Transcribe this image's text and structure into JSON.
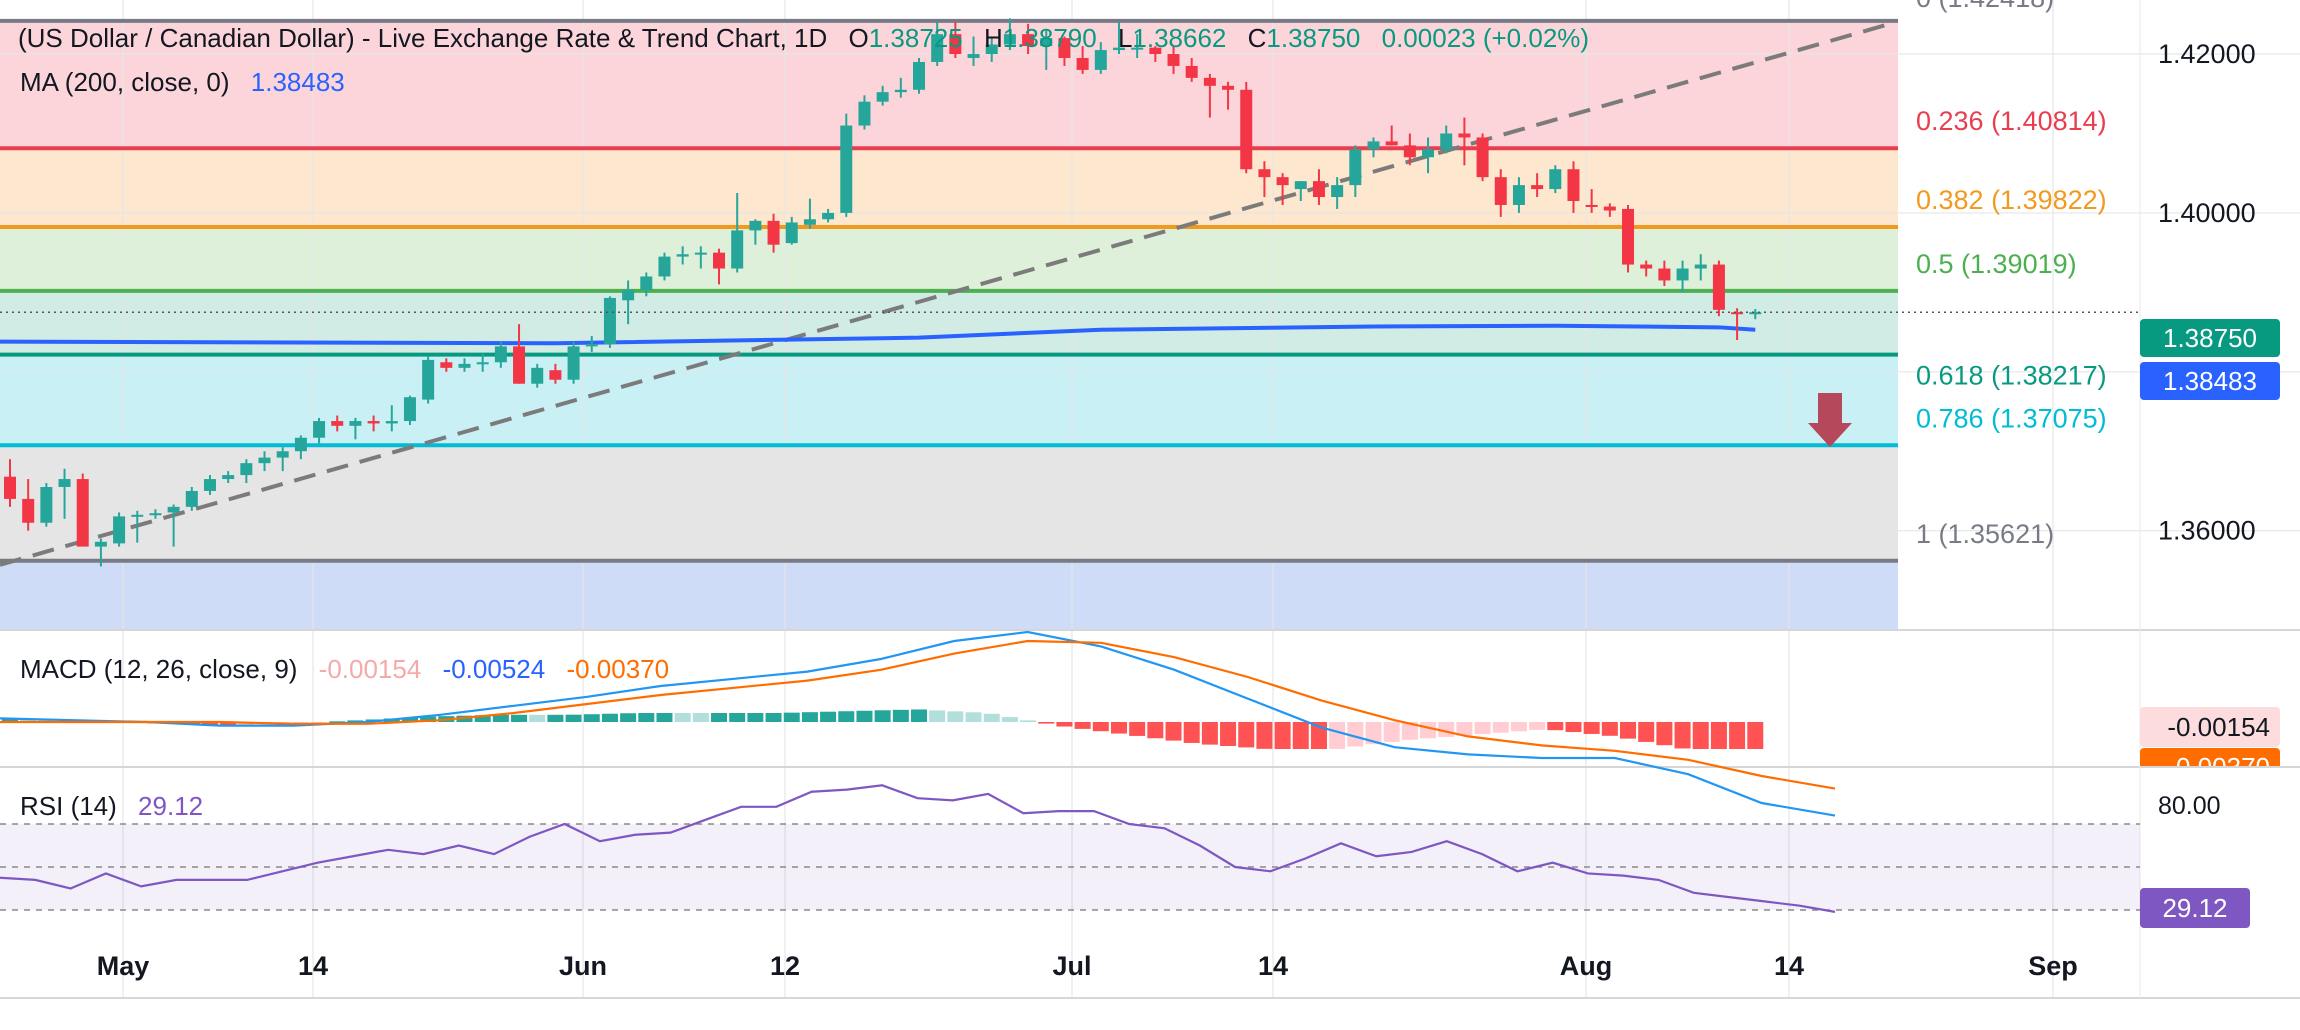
{
  "header": {
    "symbol": "(US Dollar / Canadian Dollar) - Live Exchange Rate & Trend Chart, 1D",
    "o_label": "O",
    "o_value": "1.38725",
    "h_label": "H",
    "h_value": "1.38790",
    "l_label": "L",
    "l_value": "1.38662",
    "c_label": "C",
    "c_value": "1.38750",
    "change": "0.00023 (+0.02%)"
  },
  "ma_legend": {
    "label": "MA (200, close, 0)",
    "value": "1.38483"
  },
  "macd_legend": {
    "label": "MACD (12, 26, close, 9)",
    "hist": "-0.00154",
    "macd": "-0.00524",
    "signal": "-0.00370"
  },
  "rsi_legend": {
    "label": "RSI (14)",
    "value": "29.12"
  },
  "badges": {
    "last_price": "1.38750",
    "ma_price": "1.38483",
    "macd_hist": "-0.00154",
    "macd_signal_partial": "-0.00370",
    "rsi": "29.12"
  },
  "colors": {
    "up": "#26a69a",
    "down": "#f23645",
    "ma": "#2962ff",
    "macd": "#2196f3",
    "signal": "#ff6d00",
    "rsi": "#7e57c2"
  },
  "chart_data": [
    {
      "type": "candlestick",
      "title": "(US Dollar / Canadian Dollar) - Live Exchange Rate & Trend Chart, 1D",
      "y_ticks": [
        "1.42000",
        "1.40000",
        "1.36000"
      ],
      "x_ticks": [
        "May",
        "14",
        "Jun",
        "12",
        "Jul",
        "14",
        "Aug",
        "14",
        "Sep"
      ],
      "ylim": [
        1.3475,
        1.4268
      ],
      "fib_levels": [
        {
          "ratio": "0",
          "price": 1.42418,
          "label": "0 (1.42418)"
        },
        {
          "ratio": "0.236",
          "price": 1.40814,
          "label": "0.236 (1.40814)"
        },
        {
          "ratio": "0.382",
          "price": 1.39822,
          "label": "0.382 (1.39822)"
        },
        {
          "ratio": "0.5",
          "price": 1.39019,
          "label": "0.5 (1.39019)"
        },
        {
          "ratio": "0.618",
          "price": 1.38217,
          "label": "0.618 (1.38217)"
        },
        {
          "ratio": "0.786",
          "price": 1.37075,
          "label": "0.786 (1.37075)"
        },
        {
          "ratio": "1",
          "price": 1.35621,
          "label": "1 (1.35621)"
        }
      ],
      "ohlc": [
        [
          "Apr 29",
          1.3668,
          1.369,
          1.363,
          1.364
        ],
        [
          "Apr 30",
          1.364,
          1.3665,
          1.36,
          1.361
        ],
        [
          "May 1",
          1.361,
          1.366,
          1.3605,
          1.3655
        ],
        [
          "May 2",
          1.3655,
          1.3678,
          1.3615,
          1.3665
        ],
        [
          "May 3",
          1.3665,
          1.3672,
          1.3585,
          1.358
        ],
        [
          "May 6",
          1.358,
          1.359,
          1.3555,
          1.3586
        ],
        [
          "May 7",
          1.3584,
          1.3623,
          1.358,
          1.3618
        ],
        [
          "May 8",
          1.3618,
          1.3625,
          1.3585,
          1.362
        ],
        [
          "May 9",
          1.3622,
          1.3627,
          1.3615,
          1.3622
        ],
        [
          "May 10",
          1.3623,
          1.3633,
          1.358,
          1.363
        ],
        [
          "May 13",
          1.363,
          1.3655,
          1.3625,
          1.365
        ],
        [
          "May 14",
          1.365,
          1.367,
          1.3645,
          1.3665
        ],
        [
          "May 15",
          1.3665,
          1.3675,
          1.366,
          1.367
        ],
        [
          "May 16",
          1.367,
          1.369,
          1.366,
          1.3685
        ],
        [
          "May 17",
          1.3685,
          1.37,
          1.3675,
          1.3692
        ],
        [
          "May 20",
          1.3692,
          1.3705,
          1.3675,
          1.37
        ],
        [
          "May 21",
          1.37,
          1.372,
          1.369,
          1.3717
        ],
        [
          "May 22",
          1.3717,
          1.3742,
          1.371,
          1.3738
        ],
        [
          "May 23",
          1.3738,
          1.3745,
          1.3725,
          1.3732
        ],
        [
          "May 24",
          1.3732,
          1.3742,
          1.3715,
          1.3738
        ],
        [
          "May 27",
          1.3738,
          1.3745,
          1.3725,
          1.3735
        ],
        [
          "May 28",
          1.3735,
          1.3758,
          1.3725,
          1.3738
        ],
        [
          "May 29",
          1.3738,
          1.377,
          1.3733,
          1.3768
        ],
        [
          "May 30",
          1.3765,
          1.382,
          1.376,
          1.3815
        ],
        [
          "May 31",
          1.3812,
          1.3817,
          1.38,
          1.3805
        ],
        [
          "Jun 3",
          1.3805,
          1.3817,
          1.38,
          1.381
        ],
        [
          "Jun 4",
          1.381,
          1.3823,
          1.38,
          1.3812
        ],
        [
          "Jun 5",
          1.3812,
          1.3838,
          1.3805,
          1.3832
        ],
        [
          "Jun 6",
          1.3832,
          1.386,
          1.3785,
          1.3785
        ],
        [
          "Jun 7",
          1.3785,
          1.381,
          1.378,
          1.3805
        ],
        [
          "Jun 10",
          1.3802,
          1.381,
          1.3785,
          1.379
        ],
        [
          "Jun 11",
          1.379,
          1.3838,
          1.3785,
          1.3832
        ],
        [
          "Jun 12",
          1.3832,
          1.3845,
          1.3825,
          1.3835
        ],
        [
          "Jun 13",
          1.3835,
          1.3895,
          1.383,
          1.3893
        ],
        [
          "Jun 14",
          1.389,
          1.3915,
          1.386,
          1.3903
        ],
        [
          "Jun 17",
          1.3903,
          1.3925,
          1.3895,
          1.392
        ],
        [
          "Jun 18",
          1.392,
          1.395,
          1.3915,
          1.3945
        ],
        [
          "Jun 19",
          1.3945,
          1.3958,
          1.3935,
          1.3948
        ],
        [
          "Jun 20",
          1.3948,
          1.3958,
          1.393,
          1.395
        ],
        [
          "Jun 21",
          1.395,
          1.3955,
          1.391,
          1.393
        ],
        [
          "Jun 24",
          1.393,
          1.4025,
          1.3925,
          1.3978
        ],
        [
          "Jun 25",
          1.3978,
          1.3992,
          1.396,
          1.399
        ],
        [
          "Jun 26",
          1.399,
          1.3999,
          1.395,
          1.396
        ],
        [
          "Jun 27",
          1.3962,
          1.3995,
          1.396,
          1.3988
        ],
        [
          "Jun 28",
          1.3985,
          1.4018,
          1.398,
          1.3992
        ],
        [
          "Jul 1",
          1.3992,
          1.4005,
          1.3988,
          1.4
        ],
        [
          "Jul 2",
          1.4,
          1.4125,
          1.3995,
          1.411
        ],
        [
          "Jul 3",
          1.411,
          1.4148,
          1.4105,
          1.414
        ],
        [
          "Jul 4",
          1.414,
          1.416,
          1.4135,
          1.4152
        ],
        [
          "Jul 5",
          1.4152,
          1.417,
          1.4145,
          1.4155
        ],
        [
          "Jul 8",
          1.4155,
          1.4195,
          1.415,
          1.419
        ],
        [
          "Jul 9",
          1.419,
          1.424,
          1.4185,
          1.4225
        ],
        [
          "Jul 10",
          1.4225,
          1.424,
          1.4195,
          1.42
        ],
        [
          "Jul 11",
          1.4195,
          1.4222,
          1.4185,
          1.42
        ],
        [
          "Jul 12",
          1.42,
          1.422,
          1.419,
          1.4212
        ],
        [
          "Jul 15",
          1.4212,
          1.4245,
          1.4205,
          1.4225
        ],
        [
          "Jul 16",
          1.4225,
          1.4238,
          1.42,
          1.421
        ],
        [
          "Jul 17",
          1.421,
          1.423,
          1.418,
          1.422
        ],
        [
          "Jul 18",
          1.422,
          1.4222,
          1.4185,
          1.4195
        ],
        [
          "Jul 19",
          1.4195,
          1.421,
          1.4175,
          1.418
        ],
        [
          "Jul 22",
          1.418,
          1.4215,
          1.4175,
          1.4205
        ],
        [
          "Jul 23",
          1.4205,
          1.424,
          1.42,
          1.4208
        ],
        [
          "Jul 24",
          1.4208,
          1.4225,
          1.4195,
          1.4208
        ],
        [
          "Jul 25",
          1.4208,
          1.421,
          1.419,
          1.42
        ],
        [
          "Jul 26",
          1.42,
          1.421,
          1.4175,
          1.4185
        ],
        [
          "Jul 29",
          1.4185,
          1.4195,
          1.4165,
          1.417
        ],
        [
          "Jul 30",
          1.417,
          1.4175,
          1.412,
          1.416
        ],
        [
          "Jul 31",
          1.416,
          1.4165,
          1.413,
          1.4155
        ],
        [
          "Aug 1",
          1.4155,
          1.4165,
          1.405,
          1.4055
        ],
        [
          "Aug 2",
          1.4055,
          1.4065,
          1.402,
          1.4045
        ],
        [
          "Aug 5",
          1.4045,
          1.405,
          1.401,
          1.4035
        ],
        [
          "Aug 6",
          1.403,
          1.404,
          1.4015,
          1.404
        ],
        [
          "Aug 7",
          1.404,
          1.4055,
          1.401,
          1.402
        ],
        [
          "Aug 8",
          1.402,
          1.4045,
          1.4005,
          1.4035
        ],
        [
          "Aug 9",
          1.4035,
          1.4085,
          1.402,
          1.408
        ],
        [
          "Aug 12",
          1.408,
          1.4095,
          1.407,
          1.409
        ],
        [
          "Aug 13",
          1.409,
          1.411,
          1.4085,
          1.4085
        ],
        [
          "Aug 14",
          1.4085,
          1.41,
          1.406,
          1.407
        ],
        [
          "Aug 15",
          1.407,
          1.4095,
          1.405,
          1.408
        ],
        [
          "Aug 16",
          1.408,
          1.411,
          1.4075,
          1.41
        ],
        [
          "Aug 19",
          1.41,
          1.412,
          1.406,
          1.4095
        ],
        [
          "Aug 20",
          1.4095,
          1.41,
          1.404,
          1.4045
        ],
        [
          "Aug 21",
          1.4045,
          1.4055,
          1.3995,
          1.401
        ],
        [
          "Aug 22",
          1.401,
          1.4045,
          1.4,
          1.4035
        ],
        [
          "Aug 23",
          1.4035,
          1.405,
          1.402,
          1.403
        ],
        [
          "Aug 26",
          1.403,
          1.406,
          1.4025,
          1.4055
        ],
        [
          "Aug 27",
          1.4055,
          1.4065,
          1.4,
          1.4015
        ],
        [
          "Aug 28",
          1.401,
          1.403,
          1.4,
          1.4008
        ],
        [
          "Aug 29",
          1.4008,
          1.4012,
          1.3995,
          1.4003
        ],
        [
          "Aug 30",
          1.4005,
          1.401,
          1.3925,
          1.3935
        ],
        [
          "Sep 2",
          1.3935,
          1.394,
          1.392,
          1.393
        ],
        [
          "Sep 3",
          1.393,
          1.394,
          1.3908,
          1.3915
        ],
        [
          "Sep 4",
          1.3915,
          1.394,
          1.39,
          1.393
        ],
        [
          "Sep 5",
          1.393,
          1.3948,
          1.3915,
          1.3935
        ],
        [
          "Sep 6",
          1.3935,
          1.394,
          1.387,
          1.3878
        ],
        [
          "Sep 9",
          1.3875,
          1.388,
          1.384,
          1.38725
        ],
        [
          "Sep 10",
          1.38725,
          1.3879,
          1.38662,
          1.3875
        ]
      ],
      "ma200": [
        [
          0,
          1.3838
        ],
        [
          30,
          1.3836
        ],
        [
          50,
          1.3843
        ],
        [
          60,
          1.3853
        ],
        [
          75,
          1.3857
        ],
        [
          85,
          1.3858
        ],
        [
          94,
          1.3856
        ],
        [
          96,
          1.3853
        ]
      ],
      "trendline": {
        "from": [
          0,
          1.3562
        ],
        "to": [
          99.5,
          1.4238
        ]
      }
    },
    {
      "type": "line",
      "title": "MACD (12, 26, close, 9)",
      "series": [
        {
          "name": "MACD",
          "values": [
            0.0002,
            0.0001,
            0.0,
            -0.0002,
            -0.0002,
            0.0,
            0.0004,
            0.0009,
            0.0014,
            0.002,
            0.0024,
            0.0028,
            0.0035,
            0.0045,
            0.005,
            0.0042,
            0.0029,
            0.0013,
            -0.0003,
            -0.0014,
            -0.0018,
            -0.002,
            -0.002,
            -0.0029,
            -0.0045,
            -0.0052
          ]
        },
        {
          "name": "Signal",
          "values": [
            0.0,
            0.0,
            0.0,
            0.0,
            -0.0001,
            -0.0001,
            0.0001,
            0.0005,
            0.001,
            0.0015,
            0.0019,
            0.0023,
            0.0029,
            0.0038,
            0.0045,
            0.0044,
            0.0036,
            0.0025,
            0.0012,
            0.0001,
            -0.0008,
            -0.0013,
            -0.0016,
            -0.0021,
            -0.003,
            -0.0037
          ]
        }
      ],
      "hist_note": "histogram = MACD - Signal"
    },
    {
      "type": "line",
      "title": "RSI (14)",
      "y_ticks": [
        "80.00"
      ],
      "series": [
        {
          "name": "RSI",
          "values": [
            45,
            44,
            40,
            47,
            41,
            44,
            44,
            44,
            48,
            52,
            55,
            58,
            56,
            60,
            56,
            64,
            70,
            62,
            65,
            66,
            72,
            78,
            78,
            85,
            86,
            88,
            82,
            81,
            84,
            75,
            76,
            76,
            70,
            68,
            60,
            50,
            48,
            54,
            61,
            55,
            57,
            62,
            56,
            48,
            52,
            47,
            46,
            44,
            38,
            36,
            34,
            32,
            29.12
          ]
        }
      ]
    }
  ]
}
